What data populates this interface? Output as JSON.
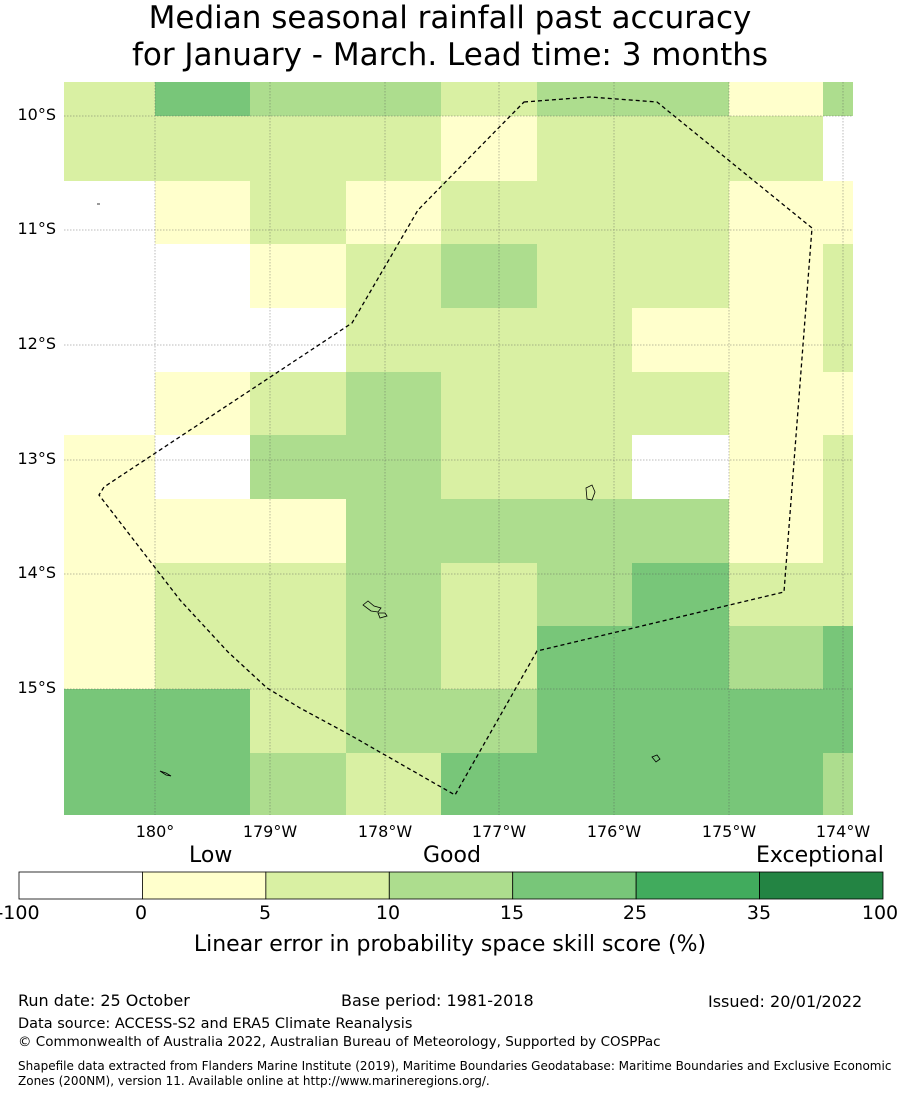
{
  "title_line1": "Median seasonal rainfall past accuracy",
  "title_line2": "for January - March. Lead time: 3 months",
  "map": {
    "lon_labels": [
      "180°",
      "179°W",
      "178°W",
      "177°W",
      "176°W",
      "175°W",
      "174°W"
    ],
    "lat_labels": [
      "10°S",
      "11°S",
      "12°S",
      "13°S",
      "14°S",
      "15°S"
    ],
    "grid_colors": [
      "#ffffff",
      "#ffffcc",
      "#d9f0a3",
      "#addd8e",
      "#78c679",
      "#41ab5d",
      "#238443"
    ],
    "grid": [
      [
        2,
        4,
        3,
        3,
        2,
        3,
        3,
        1,
        3
      ],
      [
        2,
        2,
        2,
        2,
        1,
        2,
        2,
        2,
        0
      ],
      [
        0,
        1,
        2,
        1,
        2,
        2,
        2,
        1,
        1
      ],
      [
        0,
        0,
        1,
        2,
        3,
        2,
        2,
        1,
        2
      ],
      [
        0,
        0,
        0,
        2,
        2,
        2,
        1,
        1,
        2
      ],
      [
        0,
        1,
        2,
        3,
        2,
        2,
        2,
        1,
        1
      ],
      [
        1,
        0,
        3,
        3,
        2,
        2,
        0,
        1,
        2
      ],
      [
        1,
        1,
        1,
        3,
        3,
        3,
        3,
        1,
        2
      ],
      [
        1,
        2,
        2,
        3,
        2,
        3,
        4,
        2,
        2
      ],
      [
        1,
        2,
        2,
        3,
        2,
        4,
        4,
        3,
        4
      ],
      [
        4,
        4,
        2,
        3,
        3,
        4,
        4,
        4,
        4
      ],
      [
        4,
        4,
        3,
        2,
        4,
        4,
        4,
        4,
        3
      ]
    ]
  },
  "colorbar": {
    "category_labels": [
      "Low",
      "Good",
      "Exceptional"
    ],
    "ticks": [
      "-100",
      "0",
      "5",
      "10",
      "15",
      "25",
      "35",
      "100"
    ],
    "colors": [
      "#ffffff",
      "#ffffcc",
      "#d9f0a3",
      "#addd8e",
      "#78c679",
      "#41ab5d",
      "#238443"
    ],
    "label": "Linear error in probability space skill score (%)"
  },
  "footer": {
    "run_date": "Run date: 25 October",
    "base_period": "Base period: 1981-2018",
    "issued": "Issued: 20/01/2022",
    "data_source": "Data source: ACCESS-S2 and ERA5 Climate Reanalysis",
    "copyright": "© Commonwealth of Australia 2022, Australian Bureau of Meteorology, Supported by COSPPac",
    "shapefile_line1": "Shapefile data extracted from Flanders Marine Institute (2019), Maritime Boundaries Geodatabase: Maritime Boundaries and Exclusive Economic",
    "shapefile_line2": "Zones (200NM), version 11. Available online at http://www.marineregions.org/."
  }
}
